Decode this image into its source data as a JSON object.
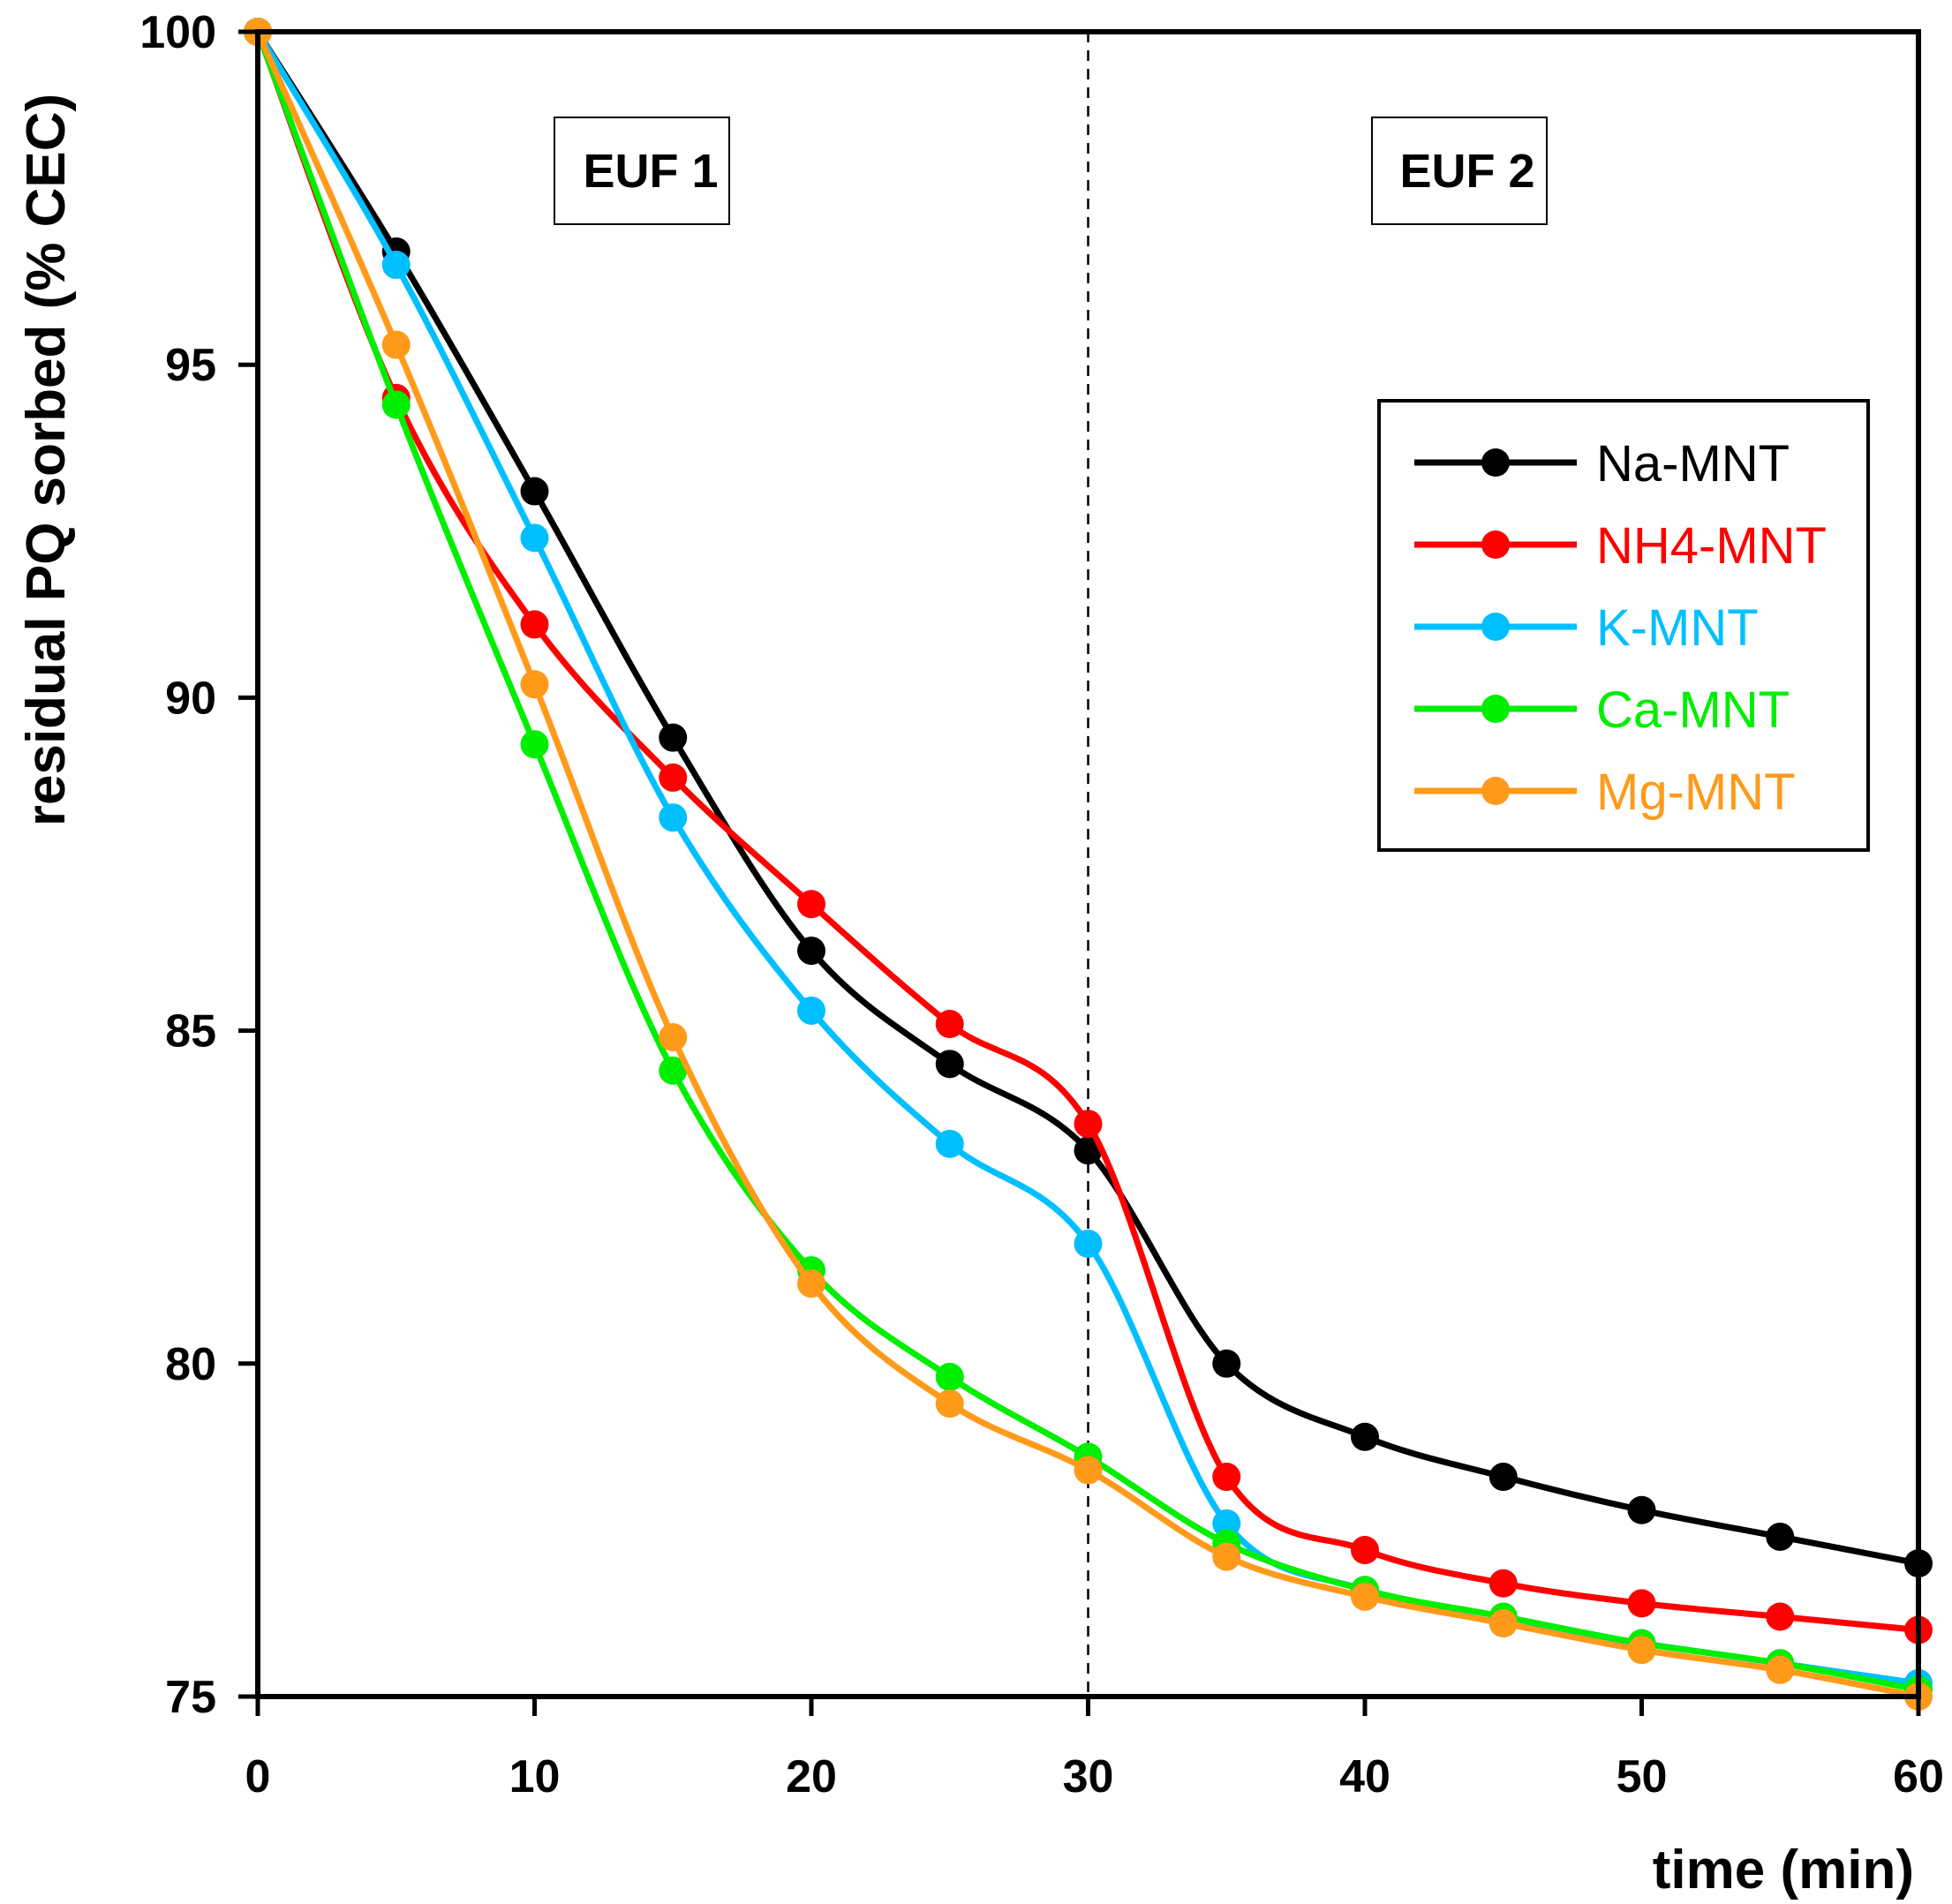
{
  "chart_data": {
    "type": "line",
    "title": "",
    "xlabel": "time (min)",
    "ylabel": "residual PQ sorbed (% CEC)",
    "xlim": [
      0,
      60
    ],
    "ylim": [
      75,
      100
    ],
    "x_ticks": [
      "0",
      "10",
      "20",
      "30",
      "40",
      "50",
      "60"
    ],
    "y_ticks": [
      "75",
      "80",
      "85",
      "90",
      "95",
      "100"
    ],
    "grid": false,
    "legend_position": "right",
    "divider_x": 30,
    "regions": [
      {
        "label": "EUF 1",
        "x_center": 14
      },
      {
        "label": "EUF 2",
        "x_center": 44
      }
    ],
    "x": [
      0,
      5,
      10,
      15,
      20,
      25,
      30,
      35,
      40,
      45,
      50,
      55,
      60
    ],
    "series": [
      {
        "name": "Na-MNT",
        "color": "#000000",
        "values": [
          100,
          96.7,
          93.1,
          89.4,
          86.2,
          84.5,
          83.2,
          80.0,
          78.9,
          78.3,
          77.8,
          77.4,
          77.0
        ]
      },
      {
        "name": "NH4-MNT",
        "color": "#ff0000",
        "values": [
          100,
          94.5,
          91.1,
          88.8,
          86.9,
          85.1,
          83.6,
          78.3,
          77.2,
          76.7,
          76.4,
          76.2,
          76.0
        ]
      },
      {
        "name": "K-MNT",
        "color": "#00bfff",
        "values": [
          100,
          96.5,
          92.4,
          88.2,
          85.3,
          83.3,
          81.8,
          77.6,
          76.6,
          76.1,
          75.8,
          75.5,
          75.2
        ]
      },
      {
        "name": "Ca-MNT",
        "color": "#00ee00",
        "values": [
          100,
          94.4,
          89.3,
          84.4,
          81.4,
          79.8,
          78.6,
          77.3,
          76.6,
          76.2,
          75.8,
          75.5,
          75.1
        ]
      },
      {
        "name": "Mg-MNT",
        "color": "#ff9a1a",
        "values": [
          100,
          95.3,
          90.2,
          84.9,
          81.2,
          79.4,
          78.4,
          77.1,
          76.5,
          76.1,
          75.7,
          75.4,
          75.0
        ]
      }
    ]
  }
}
